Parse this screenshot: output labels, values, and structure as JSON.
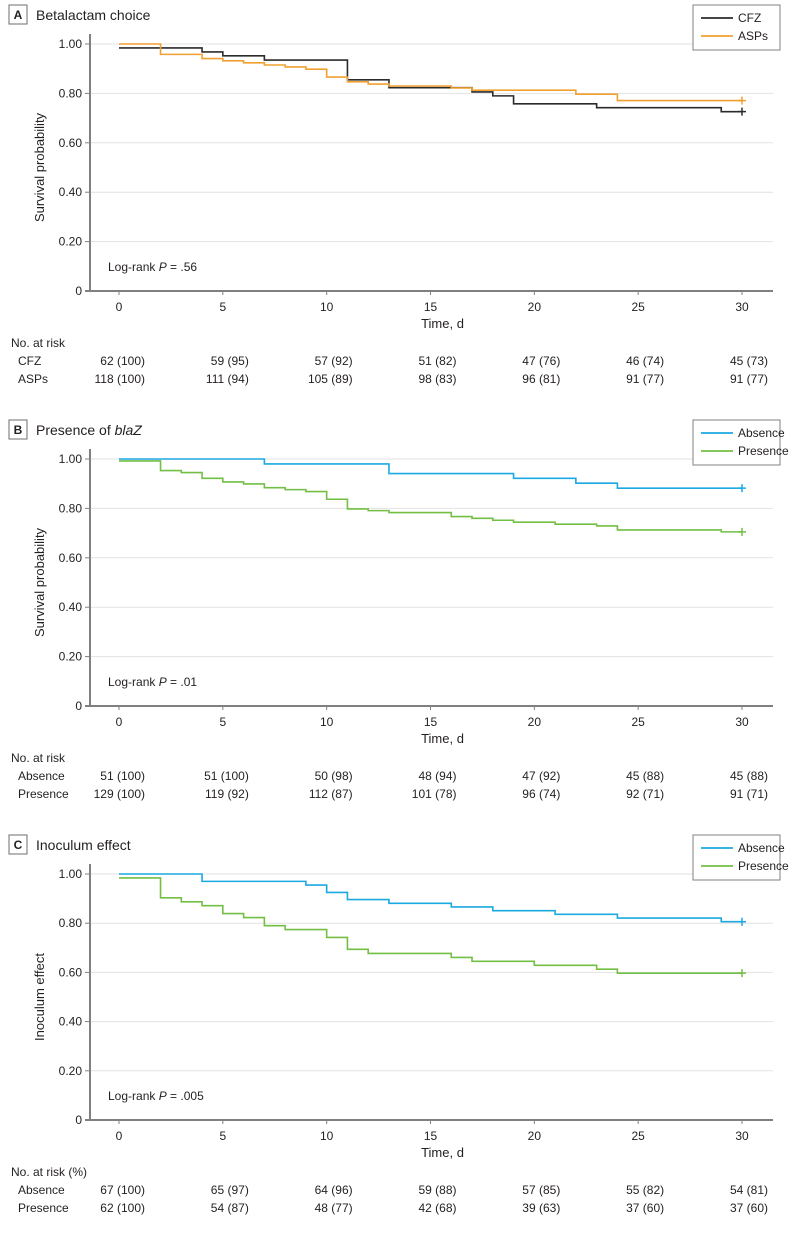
{
  "chart_data": [
    {
      "type": "line",
      "subtype": "kaplan-meier step",
      "panel_letter": "A",
      "title": "Betalactam choice",
      "title_italic_part": "",
      "xlabel": "Time, d",
      "ylabel": "Survival probability",
      "xlim": [
        0,
        30
      ],
      "ylim": [
        0,
        1
      ],
      "x_ticks": [
        "0",
        "5",
        "10",
        "15",
        "20",
        "25",
        "30"
      ],
      "y_ticks": [
        "0",
        "0.20",
        "0.40",
        "0.60",
        "0.80",
        "1.00"
      ],
      "grid": true,
      "legend_position": "top-right",
      "annotation": {
        "prefix": "Log-rank ",
        "italic": "P",
        "suffix": " = .56"
      },
      "series": [
        {
          "name": "CFZ",
          "color": "#2b2b2b",
          "steps": [
            [
              0,
              0.984
            ],
            [
              4,
              0.968
            ],
            [
              5,
              0.952
            ],
            [
              7,
              0.935
            ],
            [
              11,
              0.855
            ],
            [
              13,
              0.823
            ],
            [
              17,
              0.806
            ],
            [
              18,
              0.79
            ],
            [
              19,
              0.758
            ],
            [
              23,
              0.742
            ],
            [
              29,
              0.726
            ]
          ],
          "end_time": 30,
          "censor_mark": true
        },
        {
          "name": "ASPs",
          "color": "#f0a030",
          "steps": [
            [
              0,
              1.0
            ],
            [
              2,
              0.958
            ],
            [
              4,
              0.941
            ],
            [
              5,
              0.932
            ],
            [
              6,
              0.924
            ],
            [
              7,
              0.915
            ],
            [
              8,
              0.907
            ],
            [
              9,
              0.898
            ],
            [
              10,
              0.866
            ],
            [
              11,
              0.847
            ],
            [
              12,
              0.838
            ],
            [
              13,
              0.83
            ],
            [
              16,
              0.822
            ],
            [
              17,
              0.813
            ],
            [
              22,
              0.797
            ],
            [
              24,
              0.771
            ]
          ],
          "end_time": 30,
          "censor_mark": true
        }
      ],
      "risk_table": {
        "header": "No. at risk",
        "times": [
          0,
          5,
          10,
          15,
          20,
          25,
          30
        ],
        "rows": [
          {
            "label": "CFZ",
            "values": [
              "62 (100)",
              "59 (95)",
              "57 (92)",
              "51 (82)",
              "47 (76)",
              "46 (74)",
              "45 (73)"
            ]
          },
          {
            "label": "ASPs",
            "values": [
              "118 (100)",
              "111 (94)",
              "105 (89)",
              "98 (83)",
              "96 (81)",
              "91 (77)",
              "91 (77)"
            ]
          }
        ]
      }
    },
    {
      "type": "line",
      "subtype": "kaplan-meier step",
      "panel_letter": "B",
      "title": "Presence of ",
      "title_italic_part": "blaZ",
      "xlabel": "Time, d",
      "ylabel": "Survival probability",
      "xlim": [
        0,
        30
      ],
      "ylim": [
        0,
        1
      ],
      "x_ticks": [
        "0",
        "5",
        "10",
        "15",
        "20",
        "25",
        "30"
      ],
      "y_ticks": [
        "0",
        "0.20",
        "0.40",
        "0.60",
        "0.80",
        "1.00"
      ],
      "grid": true,
      "legend_position": "top-right",
      "annotation": {
        "prefix": "Log-rank ",
        "italic": "P",
        "suffix": " = .01"
      },
      "series": [
        {
          "name": "Absence",
          "color": "#1ba9e1",
          "steps": [
            [
              0,
              1.0
            ],
            [
              7,
              0.98
            ],
            [
              13,
              0.941
            ],
            [
              19,
              0.922
            ],
            [
              22,
              0.902
            ],
            [
              24,
              0.882
            ]
          ],
          "end_time": 30,
          "censor_mark": true
        },
        {
          "name": "Presence",
          "color": "#72bf44",
          "steps": [
            [
              0,
              0.992
            ],
            [
              2,
              0.953
            ],
            [
              3,
              0.945
            ],
            [
              4,
              0.922
            ],
            [
              5,
              0.907
            ],
            [
              6,
              0.899
            ],
            [
              7,
              0.884
            ],
            [
              8,
              0.876
            ],
            [
              9,
              0.868
            ],
            [
              10,
              0.837
            ],
            [
              11,
              0.798
            ],
            [
              12,
              0.791
            ],
            [
              13,
              0.783
            ],
            [
              16,
              0.767
            ],
            [
              17,
              0.76
            ],
            [
              18,
              0.752
            ],
            [
              19,
              0.744
            ],
            [
              21,
              0.736
            ],
            [
              23,
              0.729
            ],
            [
              24,
              0.713
            ],
            [
              29,
              0.705
            ]
          ],
          "end_time": 30,
          "censor_mark": true
        }
      ],
      "risk_table": {
        "header": "No. at risk",
        "times": [
          0,
          5,
          10,
          15,
          20,
          25,
          30
        ],
        "rows": [
          {
            "label": "Absence",
            "values": [
              "51 (100)",
              "51 (100)",
              "50 (98)",
              "48 (94)",
              "47 (92)",
              "45 (88)",
              "45 (88)"
            ]
          },
          {
            "label": "Presence",
            "values": [
              "129 (100)",
              "119 (92)",
              "112 (87)",
              "101 (78)",
              "96 (74)",
              "92 (71)",
              "91 (71)"
            ]
          }
        ]
      }
    },
    {
      "type": "line",
      "subtype": "kaplan-meier step",
      "panel_letter": "C",
      "title": "Inoculum effect",
      "title_italic_part": "",
      "xlabel": "Time, d",
      "ylabel": "Inoculum effect",
      "xlim": [
        0,
        30
      ],
      "ylim": [
        0,
        1
      ],
      "x_ticks": [
        "0",
        "5",
        "10",
        "15",
        "20",
        "25",
        "30"
      ],
      "y_ticks": [
        "0",
        "0.20",
        "0.40",
        "0.60",
        "0.80",
        "1.00"
      ],
      "grid": true,
      "legend_position": "top-right",
      "annotation": {
        "prefix": "Log-rank ",
        "italic": "P",
        "suffix": " = .005"
      },
      "series": [
        {
          "name": "Absence",
          "color": "#1ba9e1",
          "steps": [
            [
              0,
              1.0
            ],
            [
              4,
              0.97
            ],
            [
              9,
              0.955
            ],
            [
              10,
              0.925
            ],
            [
              11,
              0.896
            ],
            [
              13,
              0.881
            ],
            [
              16,
              0.866
            ],
            [
              18,
              0.851
            ],
            [
              21,
              0.836
            ],
            [
              24,
              0.821
            ],
            [
              29,
              0.806
            ]
          ],
          "end_time": 30,
          "censor_mark": true
        },
        {
          "name": "Presence",
          "color": "#72bf44",
          "steps": [
            [
              0,
              0.984
            ],
            [
              2,
              0.903
            ],
            [
              3,
              0.887
            ],
            [
              4,
              0.871
            ],
            [
              5,
              0.839
            ],
            [
              6,
              0.823
            ],
            [
              7,
              0.79
            ],
            [
              8,
              0.774
            ],
            [
              10,
              0.742
            ],
            [
              11,
              0.694
            ],
            [
              12,
              0.677
            ],
            [
              16,
              0.661
            ],
            [
              17,
              0.645
            ],
            [
              20,
              0.629
            ],
            [
              23,
              0.613
            ],
            [
              24,
              0.597
            ]
          ],
          "end_time": 30,
          "censor_mark": true
        }
      ],
      "risk_table": {
        "header": "No. at risk (%)",
        "times": [
          0,
          5,
          10,
          15,
          20,
          25,
          30
        ],
        "rows": [
          {
            "label": "Absence",
            "values": [
              "67 (100)",
              "65 (97)",
              "64 (96)",
              "59 (88)",
              "57 (85)",
              "55 (82)",
              "54 (81)"
            ]
          },
          {
            "label": "Presence",
            "values": [
              "62 (100)",
              "54 (87)",
              "48 (77)",
              "42 (68)",
              "39 (63)",
              "37 (60)",
              "37 (60)"
            ]
          }
        ]
      }
    }
  ]
}
